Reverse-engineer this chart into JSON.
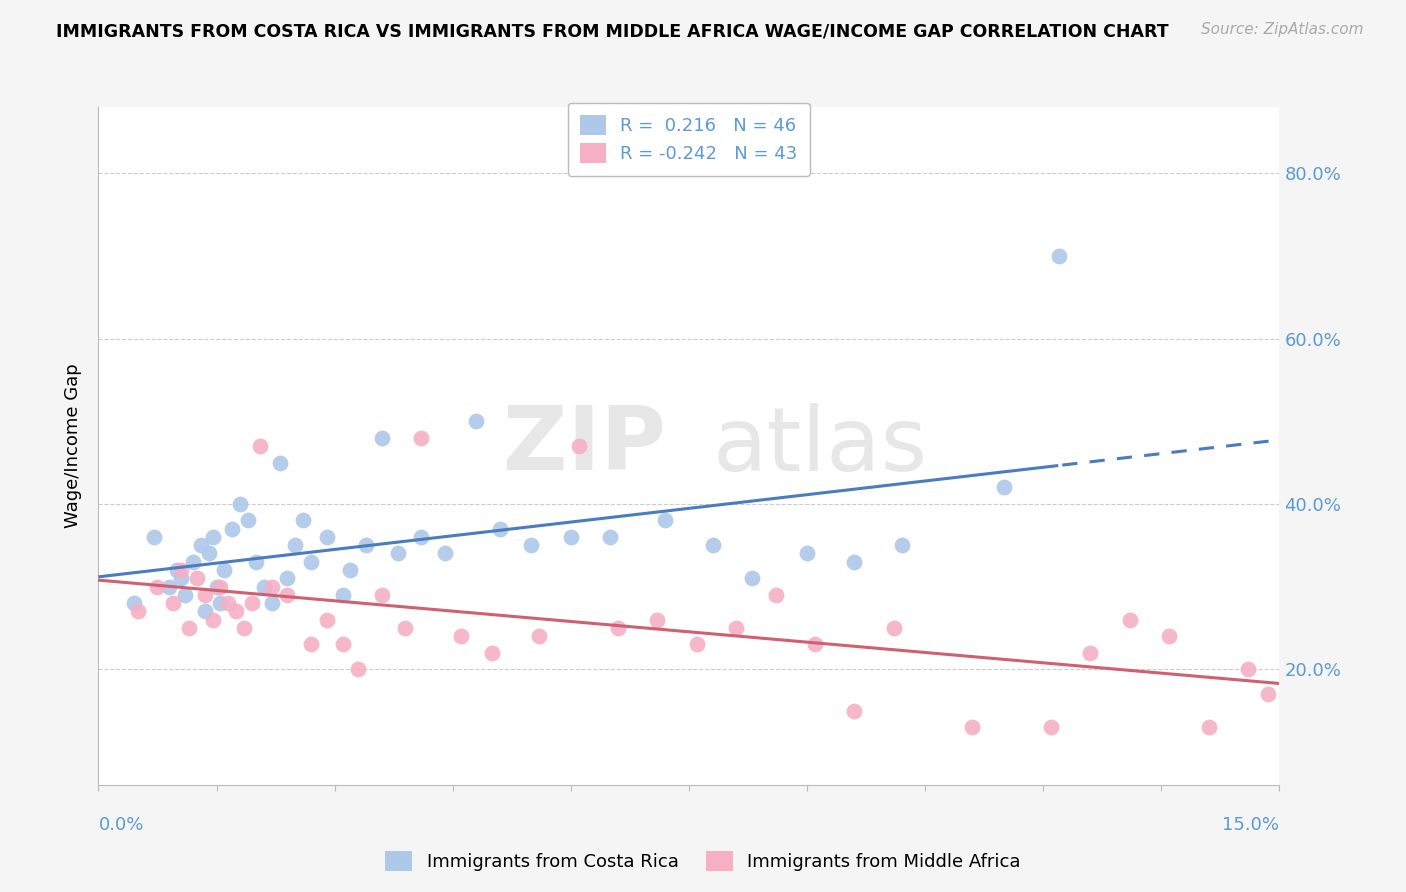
{
  "title": "IMMIGRANTS FROM COSTA RICA VS IMMIGRANTS FROM MIDDLE AFRICA WAGE/INCOME GAP CORRELATION CHART",
  "source": "Source: ZipAtlas.com",
  "ylabel": "Wage/Income Gap",
  "right_yticklabels": [
    "20.0%",
    "40.0%",
    "60.0%",
    "80.0%"
  ],
  "right_ytick_vals": [
    0.2,
    0.4,
    0.6,
    0.8
  ],
  "legend1_label": "Immigrants from Costa Rica",
  "legend2_label": "Immigrants from Middle Africa",
  "R1": "0.216",
  "N1": "46",
  "R2": "-0.242",
  "N2": "43",
  "color_blue": "#adc8e8",
  "color_pink": "#f5b0c5",
  "color_blue_line": "#4a7cbf",
  "color_pink_line": "#d06070",
  "blue_scatter_x": [
    0.45,
    0.7,
    0.9,
    1.0,
    1.05,
    1.1,
    1.2,
    1.3,
    1.35,
    1.4,
    1.45,
    1.5,
    1.55,
    1.6,
    1.7,
    1.8,
    1.9,
    2.0,
    2.1,
    2.2,
    2.3,
    2.4,
    2.5,
    2.6,
    2.7,
    2.9,
    3.1,
    3.2,
    3.4,
    3.6,
    3.8,
    4.1,
    4.4,
    4.8,
    5.1,
    5.5,
    6.0,
    6.5,
    7.2,
    7.8,
    8.3,
    9.0,
    9.6,
    10.2,
    11.5,
    12.2
  ],
  "blue_scatter_y": [
    0.28,
    0.36,
    0.3,
    0.32,
    0.31,
    0.29,
    0.33,
    0.35,
    0.27,
    0.34,
    0.36,
    0.3,
    0.28,
    0.32,
    0.37,
    0.4,
    0.38,
    0.33,
    0.3,
    0.28,
    0.45,
    0.31,
    0.35,
    0.38,
    0.33,
    0.36,
    0.29,
    0.32,
    0.35,
    0.48,
    0.34,
    0.36,
    0.34,
    0.5,
    0.37,
    0.35,
    0.36,
    0.36,
    0.38,
    0.35,
    0.31,
    0.34,
    0.33,
    0.35,
    0.42,
    0.7
  ],
  "pink_scatter_x": [
    0.5,
    0.75,
    0.95,
    1.05,
    1.15,
    1.25,
    1.35,
    1.45,
    1.55,
    1.65,
    1.75,
    1.85,
    1.95,
    2.05,
    2.2,
    2.4,
    2.7,
    2.9,
    3.1,
    3.3,
    3.6,
    3.9,
    4.1,
    4.6,
    5.0,
    5.6,
    6.1,
    6.6,
    7.1,
    7.6,
    8.1,
    8.6,
    9.1,
    9.6,
    10.1,
    11.1,
    12.1,
    12.6,
    13.1,
    13.6,
    14.1,
    14.6,
    14.85
  ],
  "pink_scatter_y": [
    0.27,
    0.3,
    0.28,
    0.32,
    0.25,
    0.31,
    0.29,
    0.26,
    0.3,
    0.28,
    0.27,
    0.25,
    0.28,
    0.47,
    0.3,
    0.29,
    0.23,
    0.26,
    0.23,
    0.2,
    0.29,
    0.25,
    0.48,
    0.24,
    0.22,
    0.24,
    0.47,
    0.25,
    0.26,
    0.23,
    0.25,
    0.29,
    0.23,
    0.15,
    0.25,
    0.13,
    0.13,
    0.22,
    0.26,
    0.24,
    0.13,
    0.2,
    0.17
  ],
  "xmin": 0.0,
  "xmax": 15.0,
  "ymin": 0.06,
  "ymax": 0.88,
  "grid_color": "#cccccc",
  "bg_color": "#ffffff",
  "fig_bg": "#f5f5f5",
  "text_color_blue": "#5b9bd5"
}
